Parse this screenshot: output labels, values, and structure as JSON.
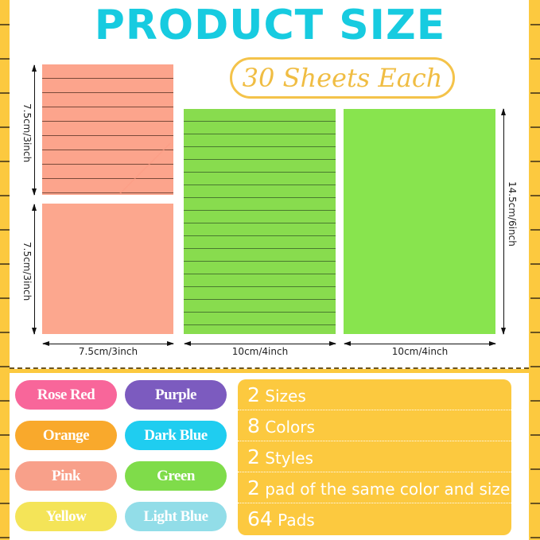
{
  "header": {
    "title": "PRODUCT SIZE",
    "sheets": "30 Sheets Each"
  },
  "dimensions": {
    "small_height_1": "7.5cm/3inch",
    "small_height_2": "7.5cm/3inch",
    "small_width": "7.5cm/3inch",
    "large_height": "14.5cm/6inch",
    "large_width_1": "10cm/4inch",
    "large_width_2": "10cm/4inch"
  },
  "colors": [
    {
      "label": "Rose Red",
      "color": "#f8669a"
    },
    {
      "label": "Purple",
      "color": "#7c5bbf"
    },
    {
      "label": "Orange",
      "color": "#f9a92c"
    },
    {
      "label": "Dark Blue",
      "color": "#1fcdf0"
    },
    {
      "label": "Pink",
      "color": "#f8a08a"
    },
    {
      "label": "Green",
      "color": "#7fdc4a"
    },
    {
      "label": "Yellow",
      "color": "#f4e458"
    },
    {
      "label": "Light Blue",
      "color": "#92dde8"
    }
  ],
  "specs": [
    {
      "num": "2",
      "text": "Sizes"
    },
    {
      "num": "8",
      "text": "Colors"
    },
    {
      "num": "2",
      "text": "Styles"
    },
    {
      "num": "2",
      "text": "pad of the same color and size"
    },
    {
      "num": "64",
      "text": "Pads"
    }
  ]
}
